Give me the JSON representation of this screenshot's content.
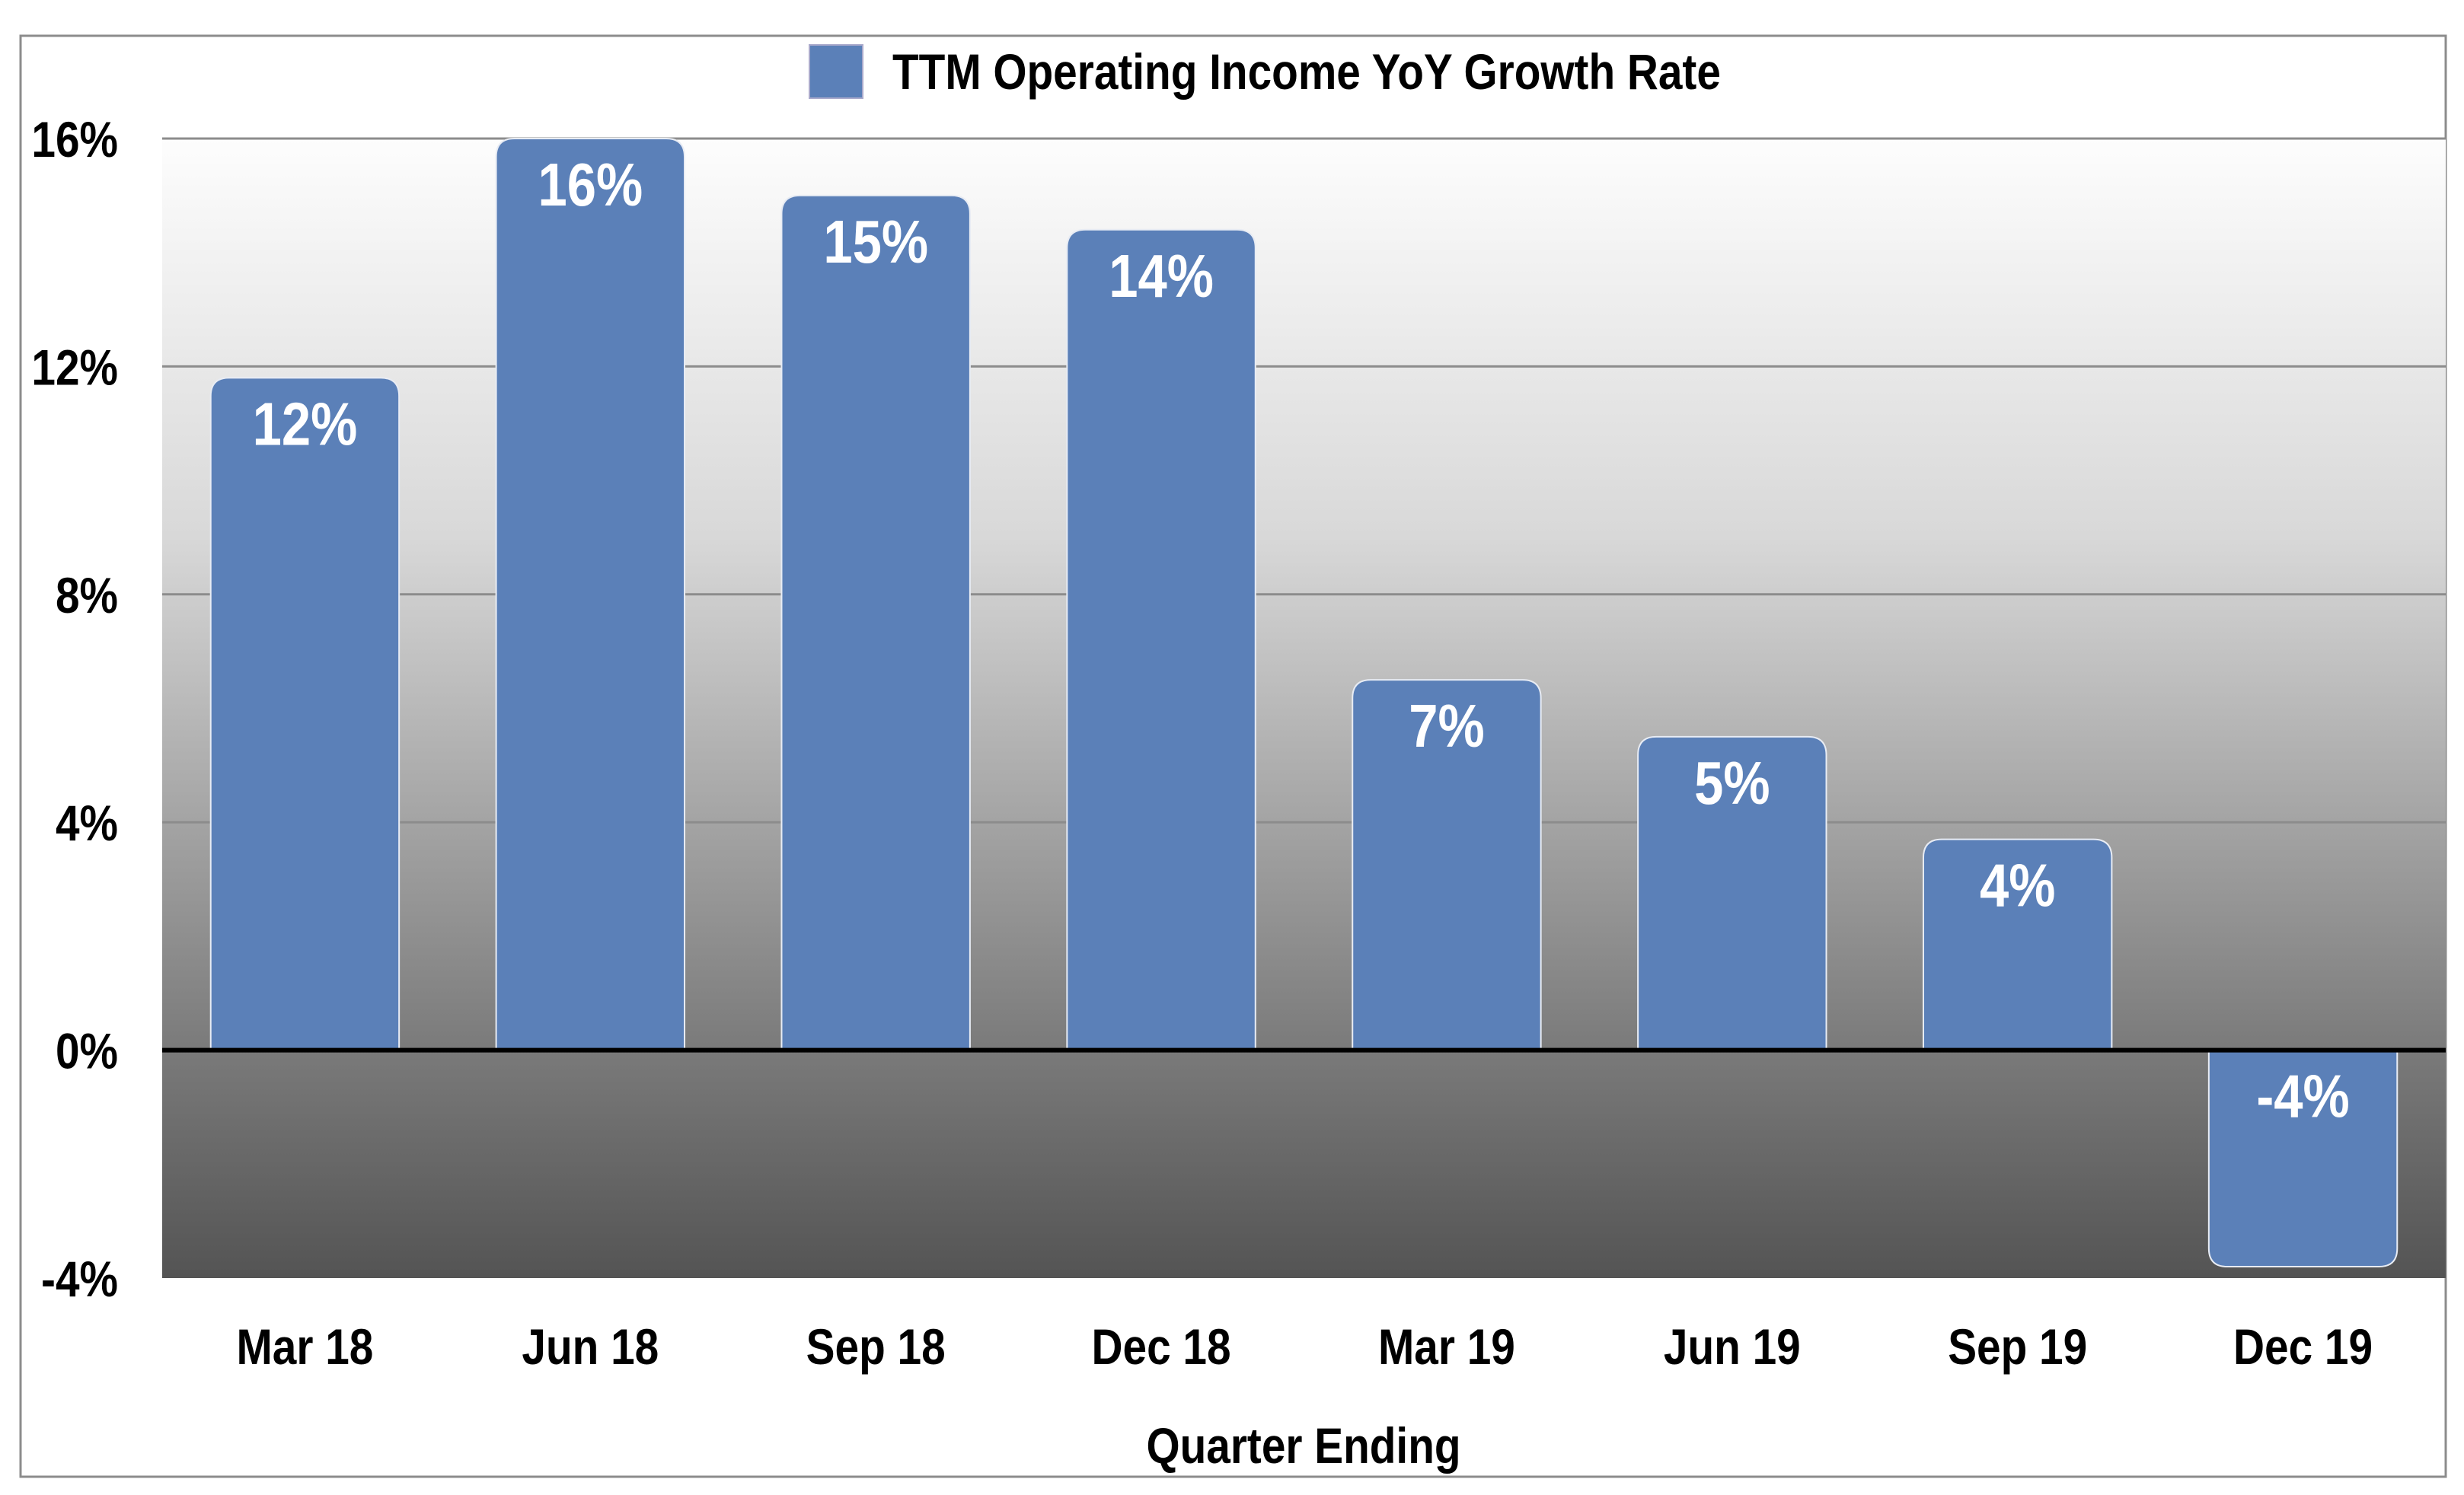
{
  "chart_data": {
    "type": "bar",
    "title": "",
    "xlabel": "Quarter Ending",
    "ylabel": "",
    "categories": [
      "Mar 18",
      "Jun 18",
      "Sep 18",
      "Dec 18",
      "Mar 19",
      "Jun 19",
      "Sep 19",
      "Dec 19"
    ],
    "series": [
      {
        "name": "TTM Operating Income YoY Growth Rate",
        "values": [
          11.8,
          16.0,
          15.0,
          14.4,
          6.5,
          5.5,
          3.7,
          -3.8
        ],
        "data_labels": [
          "12%",
          "16%",
          "15%",
          "14%",
          "7%",
          "5%",
          "4%",
          "-4%"
        ]
      }
    ],
    "ylim": [
      -4,
      16
    ],
    "yticks": [
      -4,
      0,
      4,
      8,
      12,
      16
    ],
    "ytick_labels": [
      "-4%",
      "0%",
      "4%",
      "8%",
      "12%",
      "16%"
    ],
    "grid": true,
    "legend": "top-center",
    "colors": {
      "bar": "#5b80b8",
      "grid": "#8c8c8c",
      "zero_line": "#000000"
    }
  }
}
